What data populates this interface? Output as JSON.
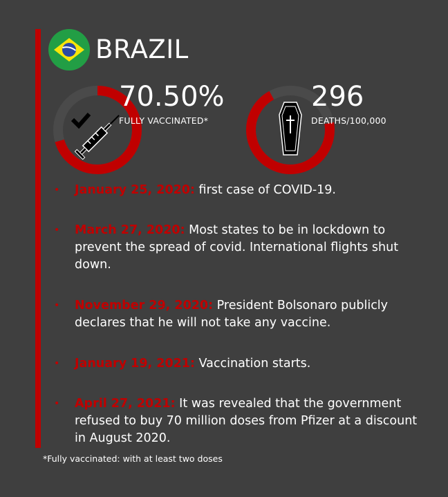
{
  "country": "BRAZIL",
  "flag_icon": "brazil-flag-icon",
  "colors": {
    "accent": "#c00000",
    "background": "#3f3f3f",
    "text": "#ffffff"
  },
  "stats": {
    "vaccinated": {
      "value": "70.50%",
      "label": "FULLY VACCINATED*",
      "icon": "syringe-check-icon",
      "fill_fraction": 0.705
    },
    "deaths": {
      "value": "296",
      "label": "DEATHS/100,000",
      "icon": "coffin-icon"
    }
  },
  "timeline": [
    {
      "date": "January 25, 2020:",
      "text": " first case of COVID-19."
    },
    {
      "date": "March 27, 2020:",
      "text": " Most states to be in lockdown to prevent the spread of covid. International flights shut down."
    },
    {
      "date": "November 29, 2020:",
      "text": " President Bolsonaro publicly declares that he will not take any vaccine."
    },
    {
      "date": "January 19, 2021:",
      "text": " Vaccination starts."
    },
    {
      "date": "April 27, 2021:",
      "text": " It was revealed that the government refused to buy 70 million doses from Pfizer at a discount in August 2020."
    }
  ],
  "footnote": "*Fully vaccinated: with at least two doses"
}
